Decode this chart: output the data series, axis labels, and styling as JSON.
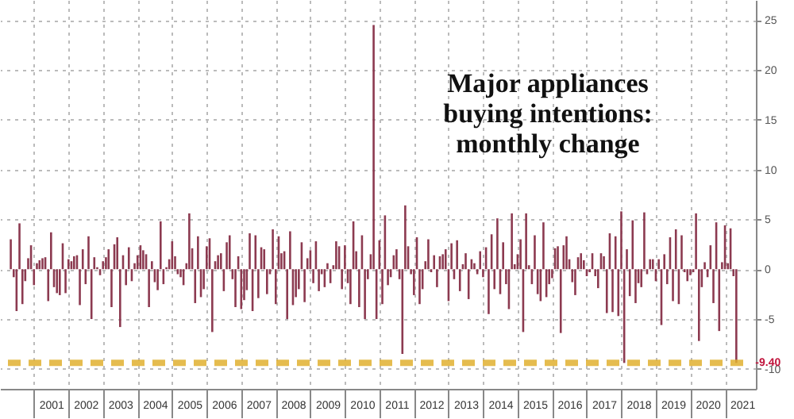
{
  "chart_data": {
    "type": "bar",
    "title": "Major appliances buying intentions: monthly change",
    "x": [
      "2000-05",
      "2000-06",
      "2000-07",
      "2000-08",
      "2000-09",
      "2000-10",
      "2000-11",
      "2000-12",
      "2001-01",
      "2001-02",
      "2001-03",
      "2001-04",
      "2001-05",
      "2001-06",
      "2001-07",
      "2001-08",
      "2001-09",
      "2001-10",
      "2001-11",
      "2001-12",
      "2002-01",
      "2002-02",
      "2002-03",
      "2002-04",
      "2002-05",
      "2002-06",
      "2002-07",
      "2002-08",
      "2002-09",
      "2002-10",
      "2002-11",
      "2002-12",
      "2003-01",
      "2003-02",
      "2003-03",
      "2003-04",
      "2003-05",
      "2003-06",
      "2003-07",
      "2003-08",
      "2003-09",
      "2003-10",
      "2003-11",
      "2003-12",
      "2004-01",
      "2004-02",
      "2004-03",
      "2004-04",
      "2004-05",
      "2004-06",
      "2004-07",
      "2004-08",
      "2004-09",
      "2004-10",
      "2004-11",
      "2004-12",
      "2005-01",
      "2005-02",
      "2005-03",
      "2005-04",
      "2005-05",
      "2005-06",
      "2005-07",
      "2005-08",
      "2005-09",
      "2005-10",
      "2005-11",
      "2005-12",
      "2006-01",
      "2006-02",
      "2006-03",
      "2006-04",
      "2006-05",
      "2006-06",
      "2006-07",
      "2006-08",
      "2006-09",
      "2006-10",
      "2006-11",
      "2006-12",
      "2007-01",
      "2007-02",
      "2007-03",
      "2007-04",
      "2007-05",
      "2007-06",
      "2007-07",
      "2007-08",
      "2007-09",
      "2007-10",
      "2007-11",
      "2007-12",
      "2008-01",
      "2008-02",
      "2008-03",
      "2008-04",
      "2008-05",
      "2008-06",
      "2008-07",
      "2008-08",
      "2008-09",
      "2008-10",
      "2008-11",
      "2008-12",
      "2009-01",
      "2009-02",
      "2009-03",
      "2009-04",
      "2009-05",
      "2009-06",
      "2009-07",
      "2009-08",
      "2009-09",
      "2009-10",
      "2009-11",
      "2009-12",
      "2010-01",
      "2010-02",
      "2010-03",
      "2010-04",
      "2010-05",
      "2010-06",
      "2010-07",
      "2010-08",
      "2010-09",
      "2010-10",
      "2010-11",
      "2010-12",
      "2011-01",
      "2011-02",
      "2011-03",
      "2011-04",
      "2011-05",
      "2011-06",
      "2011-07",
      "2011-08",
      "2011-09",
      "2011-10",
      "2011-11",
      "2011-12",
      "2012-01",
      "2012-02",
      "2012-03",
      "2012-04",
      "2012-05",
      "2012-06",
      "2012-07",
      "2012-08",
      "2012-09",
      "2012-10",
      "2012-11",
      "2012-12",
      "2013-01",
      "2013-02",
      "2013-03",
      "2013-04",
      "2013-05",
      "2013-06",
      "2013-07",
      "2013-08",
      "2013-09",
      "2013-10",
      "2013-11",
      "2013-12",
      "2014-01",
      "2014-02",
      "2014-03",
      "2014-04",
      "2014-05",
      "2014-06",
      "2014-07",
      "2014-08",
      "2014-09",
      "2014-10",
      "2014-11",
      "2014-12",
      "2015-01",
      "2015-02",
      "2015-03",
      "2015-04",
      "2015-05",
      "2015-06",
      "2015-07",
      "2015-08",
      "2015-09",
      "2015-10",
      "2015-11",
      "2015-12",
      "2016-01",
      "2016-02",
      "2016-03",
      "2016-04",
      "2016-05",
      "2016-06",
      "2016-07",
      "2016-08",
      "2016-09",
      "2016-10",
      "2016-11",
      "2016-12",
      "2017-01",
      "2017-02",
      "2017-03",
      "2017-04",
      "2017-05",
      "2017-06",
      "2017-07",
      "2017-08",
      "2017-09",
      "2017-10",
      "2017-11",
      "2017-12",
      "2018-01",
      "2018-02",
      "2018-03",
      "2018-04",
      "2018-05",
      "2018-06",
      "2018-07",
      "2018-08",
      "2018-09",
      "2018-10",
      "2018-11",
      "2018-12",
      "2019-01",
      "2019-02",
      "2019-03",
      "2019-04",
      "2019-05",
      "2019-06",
      "2019-07",
      "2019-08",
      "2019-09",
      "2019-10",
      "2019-11",
      "2019-12",
      "2020-01",
      "2020-02",
      "2020-03",
      "2020-04",
      "2020-05",
      "2020-06",
      "2020-07",
      "2020-08",
      "2020-09",
      "2020-10",
      "2020-11",
      "2020-12",
      "2021-01",
      "2021-02",
      "2021-03",
      "2021-04",
      "2021-05"
    ],
    "values": [
      3.0,
      -0.8,
      -4.2,
      4.6,
      -3.5,
      -1.2,
      1.1,
      2.4,
      -1.6,
      0.6,
      0.9,
      1.1,
      1.2,
      -3.2,
      3.7,
      -1.8,
      -2.4,
      -2.6,
      2.6,
      -2.4,
      1.0,
      0.8,
      1.3,
      1.4,
      -3.6,
      2.0,
      -1.5,
      3.3,
      -5.0,
      1.2,
      0.2,
      -0.6,
      0.8,
      1.2,
      2.0,
      -3.8,
      2.5,
      3.2,
      -5.8,
      1.4,
      -1.6,
      2.2,
      -1.2,
      0.6,
      1.4,
      2.4,
      1.9,
      1.5,
      -3.8,
      0.8,
      -1.3,
      -2.1,
      4.8,
      -1.5,
      0.2,
      1.0,
      2.8,
      1.3,
      -0.5,
      -0.8,
      -1.6,
      0.6,
      5.6,
      2.1,
      -3.4,
      3.3,
      -2.8,
      -2.0,
      2.3,
      3.1,
      -6.3,
      0.8,
      1.4,
      1.6,
      -2.2,
      2.7,
      3.4,
      -1.0,
      -3.8,
      1.3,
      -4.0,
      -3.1,
      -2.1,
      3.6,
      -4.2,
      3.4,
      -2.9,
      2.2,
      2.0,
      -2.5,
      -0.5,
      4.0,
      -3.5,
      3.3,
      1.6,
      1.8,
      -5.0,
      3.8,
      -3.6,
      -2.8,
      -2.0,
      2.7,
      -3.3,
      1.1,
      1.9,
      -1.4,
      2.8,
      -2.2,
      -0.5,
      -1.8,
      0.6,
      -1.4,
      0.4,
      2.8,
      2.3,
      -2.0,
      2.4,
      -1.4,
      -3.5,
      4.8,
      1.8,
      -3.8,
      3.4,
      -5.0,
      -1.0,
      1.5,
      24.5,
      -5.0,
      2.9,
      -3.5,
      5.4,
      -1.6,
      -0.8,
      1.4,
      2.0,
      -1.0,
      -8.5,
      6.4,
      2.3,
      -0.5,
      -2.6,
      3.2,
      -3.5,
      -2.0,
      0.8,
      3.0,
      -0.3,
      1.4,
      -1.8,
      1.3,
      1.5,
      2.0,
      -3.2,
      2.6,
      -1.0,
      2.9,
      -2.2,
      0.5,
      1.6,
      -3.0,
      1.0,
      0.6,
      -0.5,
      1.8,
      -0.8,
      2.2,
      -4.5,
      3.5,
      -2.0,
      5.1,
      -2.5,
      2.7,
      -1.5,
      -4.0,
      5.6,
      0.5,
      1.5,
      3.0,
      -6.3,
      5.6,
      0.4,
      -1.5,
      3.4,
      -2.5,
      -3.2,
      4.7,
      -2.8,
      -1.5,
      -0.9,
      2.1,
      2.3,
      -6.4,
      2.4,
      3.3,
      1.0,
      -1.3,
      -2.6,
      1.2,
      1.6,
      0.9,
      -0.7,
      -0.3,
      1.6,
      -0.7,
      -1.9,
      1.6,
      1.3,
      -4.4,
      3.6,
      -4.3,
      3.3,
      -4.7,
      5.8,
      -9.4,
      2.0,
      -2.7,
      4.9,
      -3.4,
      -1.4,
      -1.8,
      5.7,
      -0.5,
      1.0,
      1.0,
      -1.2,
      1.0,
      -5.6,
      1.5,
      -1.5,
      3.2,
      -3.2,
      4.0,
      -3.5,
      3.4,
      -0.3,
      -1.2,
      -0.6,
      -0.3,
      5.6,
      -7.2,
      -1.8,
      0.7,
      -0.8,
      2.4,
      -3.4,
      4.7,
      -6.2,
      0.7,
      4.4,
      0.6,
      4.1,
      -0.7,
      -9.4
    ],
    "color": "#8c3a50",
    "xlim": [
      "2000-04",
      "2021-09"
    ],
    "xticks": [
      {
        "value": "2001-01",
        "label": null
      },
      {
        "value": "2001-07",
        "label": "2001"
      },
      {
        "value": "2002-01",
        "label": null
      },
      {
        "value": "2002-07",
        "label": "2002"
      },
      {
        "value": "2003-01",
        "label": null
      },
      {
        "value": "2003-07",
        "label": "2003"
      },
      {
        "value": "2004-01",
        "label": null
      },
      {
        "value": "2004-07",
        "label": "2004"
      },
      {
        "value": "2005-01",
        "label": null
      },
      {
        "value": "2005-07",
        "label": "2005"
      },
      {
        "value": "2006-01",
        "label": null
      },
      {
        "value": "2006-07",
        "label": "2006"
      },
      {
        "value": "2007-01",
        "label": null
      },
      {
        "value": "2007-07",
        "label": "2007"
      },
      {
        "value": "2008-01",
        "label": null
      },
      {
        "value": "2008-07",
        "label": "2008"
      },
      {
        "value": "2009-01",
        "label": null
      },
      {
        "value": "2009-07",
        "label": "2009"
      },
      {
        "value": "2010-01",
        "label": null
      },
      {
        "value": "2010-07",
        "label": "2010"
      },
      {
        "value": "2011-01",
        "label": null
      },
      {
        "value": "2011-07",
        "label": "2011"
      },
      {
        "value": "2012-01",
        "label": null
      },
      {
        "value": "2012-07",
        "label": "2012"
      },
      {
        "value": "2013-01",
        "label": null
      },
      {
        "value": "2013-07",
        "label": "2013"
      },
      {
        "value": "2014-01",
        "label": null
      },
      {
        "value": "2014-07",
        "label": "2014"
      },
      {
        "value": "2015-01",
        "label": null
      },
      {
        "value": "2015-07",
        "label": "2015"
      },
      {
        "value": "2016-01",
        "label": null
      },
      {
        "value": "2016-07",
        "label": "2016"
      },
      {
        "value": "2017-01",
        "label": null
      },
      {
        "value": "2017-07",
        "label": "2017"
      },
      {
        "value": "2018-01",
        "label": null
      },
      {
        "value": "2018-07",
        "label": "2018"
      },
      {
        "value": "2019-01",
        "label": null
      },
      {
        "value": "2019-07",
        "label": "2019"
      },
      {
        "value": "2020-01",
        "label": null
      },
      {
        "value": "2020-07",
        "label": "2020"
      },
      {
        "value": "2021-01",
        "label": null
      },
      {
        "value": "2021-07",
        "label": "2021"
      }
    ],
    "ylim": [
      -12,
      27
    ],
    "yticks": [
      -10,
      -5,
      0,
      5,
      10,
      15,
      20,
      25
    ],
    "grid": true,
    "ref_lines": [
      {
        "axis": "y",
        "value": -9.4,
        "color": "#e0b030",
        "line_style": "dashed"
      }
    ],
    "annotations": [
      {
        "text": "-9.40",
        "x": "2021-05",
        "y": -9.4
      }
    ]
  }
}
